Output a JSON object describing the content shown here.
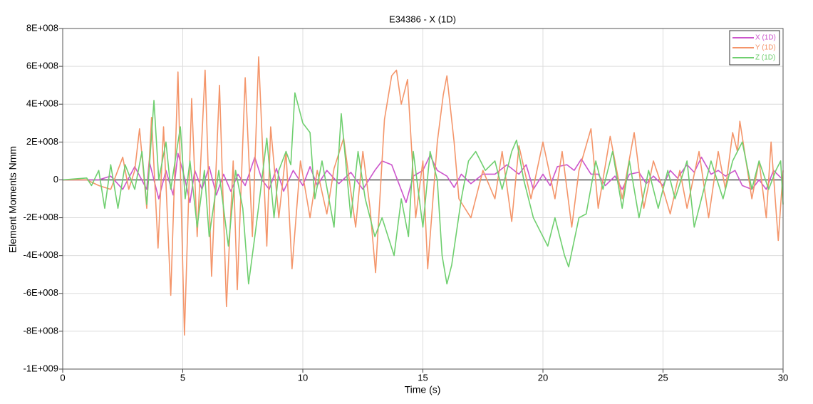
{
  "chart_data": {
    "type": "line",
    "title": "E34386 - X (1D)",
    "xlabel": "Time (s)",
    "ylabel": "Element Moments Nmm",
    "xlim": [
      0,
      30
    ],
    "xticks": [
      0,
      5,
      10,
      15,
      20,
      25,
      30
    ],
    "ylim": [
      -1000000000,
      800000000
    ],
    "yticks": [
      {
        "value": -1000000000,
        "label": "-1E+009"
      },
      {
        "value": -800000000,
        "label": "-8E+008"
      },
      {
        "value": -600000000,
        "label": "-6E+008"
      },
      {
        "value": -400000000,
        "label": "-4E+008"
      },
      {
        "value": -200000000,
        "label": "-2E+008"
      },
      0,
      {
        "value": 200000000,
        "label": "2E+008"
      },
      {
        "value": 400000000,
        "label": "4E+008"
      },
      {
        "value": 600000000,
        "label": "6E+008"
      },
      {
        "value": 800000000,
        "label": "8E+008"
      }
    ],
    "grid": true,
    "legend": "upper right",
    "series": [
      {
        "name": "X (1D)",
        "color": "#cc55cc",
        "x": [
          0,
          1.5,
          2,
          2.5,
          3,
          3.5,
          3.6,
          4,
          4.3,
          4.6,
          4.8,
          5.1,
          5.3,
          5.5,
          5.8,
          6.1,
          6.4,
          6.7,
          7,
          7.3,
          7.6,
          8,
          8.3,
          8.6,
          8.9,
          9.2,
          9.6,
          10,
          10.3,
          10.6,
          11,
          11.5,
          12,
          12.5,
          13,
          13.3,
          13.7,
          14,
          14.3,
          14.6,
          15,
          15.3,
          15.6,
          16,
          16.3,
          16.6,
          17,
          17.5,
          18,
          18.5,
          19,
          19.3,
          19.6,
          20,
          20.3,
          20.6,
          21,
          21.3,
          21.6,
          22,
          22.3,
          22.6,
          23,
          23.3,
          23.6,
          24,
          24.3,
          24.6,
          25,
          25.3,
          25.6,
          26,
          26.3,
          26.6,
          27,
          27.3,
          27.6,
          28,
          28.3,
          28.7,
          29,
          29.3,
          29.6,
          30
        ],
        "values": [
          0,
          0,
          20000000.0,
          -50000000.0,
          70000000.0,
          -50000000.0,
          100000000.0,
          -100000000.0,
          50000000.0,
          -80000000.0,
          140000000.0,
          0,
          -120000000.0,
          50000000.0,
          -50000000.0,
          70000000.0,
          -80000000.0,
          30000000.0,
          -60000000.0,
          30000000.0,
          -30000000.0,
          120000000.0,
          0,
          -50000000.0,
          60000000.0,
          -60000000.0,
          50000000.0,
          -30000000.0,
          70000000.0,
          -30000000.0,
          50000000.0,
          -20000000.0,
          40000000.0,
          -50000000.0,
          50000000.0,
          100000000.0,
          80000000.0,
          -20000000.0,
          -120000000.0,
          20000000.0,
          50000000.0,
          130000000.0,
          50000000.0,
          20000000.0,
          -40000000.0,
          30000000.0,
          -20000000.0,
          30000000.0,
          30000000.0,
          80000000.0,
          30000000.0,
          80000000.0,
          -50000000.0,
          30000000.0,
          -30000000.0,
          70000000.0,
          80000000.0,
          50000000.0,
          110000000.0,
          30000000.0,
          30000000.0,
          -30000000.0,
          20000000.0,
          -50000000.0,
          30000000.0,
          40000000.0,
          -20000000.0,
          20000000.0,
          -30000000.0,
          50000000.0,
          10000000.0,
          80000000.0,
          40000000.0,
          120000000.0,
          30000000.0,
          50000000.0,
          20000000.0,
          50000000.0,
          -30000000.0,
          -50000000.0,
          0,
          -50000000.0,
          50000000.0,
          0
        ]
      },
      {
        "name": "Y (1D)",
        "color": "#f4956a",
        "x": [
          0,
          1,
          1.5,
          2,
          2.5,
          2.75,
          3,
          3.2,
          3.5,
          3.7,
          3.97,
          4.2,
          4.5,
          4.8,
          5.07,
          5.37,
          5.6,
          5.93,
          6.2,
          6.53,
          6.82,
          7.1,
          7.27,
          7.6,
          7.9,
          8.16,
          8.5,
          8.66,
          9,
          9.3,
          9.55,
          9.9,
          10.3,
          10.6,
          11,
          11.3,
          11.7,
          12.2,
          12.5,
          12.8,
          13.03,
          13.4,
          13.7,
          13.9,
          14.1,
          14.36,
          14.7,
          15,
          15.2,
          15.6,
          15.85,
          16,
          16.3,
          16.5,
          17,
          17.5,
          18,
          18.3,
          18.7,
          19,
          19.5,
          20,
          20.5,
          20.8,
          21.2,
          21.5,
          22,
          22.3,
          22.8,
          23.3,
          23.8,
          24.2,
          24.6,
          25,
          25.3,
          25.7,
          26,
          26.5,
          26.9,
          27.3,
          27.6,
          27.9,
          28.1,
          28.2,
          28.7,
          29,
          29.3,
          29.5,
          29.8,
          30
        ],
        "values": [
          0,
          0,
          -30000000.0,
          -50000000.0,
          120000000.0,
          -50000000.0,
          50000000.0,
          270000000.0,
          -150000000.0,
          330000000.0,
          -360000000.0,
          280000000.0,
          -610000000.0,
          570000000.0,
          -820000000.0,
          430000000.0,
          -300000000.0,
          580000000.0,
          -510000000.0,
          500000000.0,
          -670000000.0,
          100000000.0,
          -580000000.0,
          540000000.0,
          -300000000.0,
          650000000.0,
          -350000000.0,
          280000000.0,
          -200000000.0,
          150000000.0,
          -470000000.0,
          100000000.0,
          -200000000.0,
          50000000.0,
          -180000000.0,
          60000000.0,
          220000000.0,
          -250000000.0,
          150000000.0,
          -150000000.0,
          -490000000.0,
          320000000.0,
          550000000.0,
          580000000.0,
          400000000.0,
          530000000.0,
          -200000000.0,
          100000000.0,
          -470000000.0,
          200000000.0,
          450000000.0,
          550000000.0,
          200000000.0,
          -100000000.0,
          -200000000.0,
          50000000.0,
          -100000000.0,
          150000000.0,
          -220000000.0,
          180000000.0,
          -100000000.0,
          200000000.0,
          -100000000.0,
          150000000.0,
          -250000000.0,
          50000000.0,
          270000000.0,
          -150000000.0,
          230000000.0,
          -100000000.0,
          250000000.0,
          -150000000.0,
          100000000.0,
          -50000000.0,
          -180000000.0,
          50000000.0,
          -150000000.0,
          150000000.0,
          -200000000.0,
          150000000.0,
          -50000000.0,
          250000000.0,
          150000000.0,
          310000000.0,
          -100000000.0,
          100000000.0,
          -200000000.0,
          200000000.0,
          -320000000.0,
          50000000.0
        ]
      },
      {
        "name": "Z (1D)",
        "color": "#6fcf6f",
        "x": [
          0,
          1,
          1.2,
          1.5,
          1.75,
          2,
          2.3,
          2.6,
          3,
          3.3,
          3.5,
          3.8,
          4,
          4.3,
          4.5,
          4.9,
          5.1,
          5.3,
          5.6,
          5.9,
          6.1,
          6.5,
          6.9,
          7.2,
          7.5,
          7.74,
          8,
          8.2,
          8.5,
          8.8,
          9,
          9.3,
          9.5,
          9.67,
          10,
          10.3,
          10.5,
          10.8,
          11.3,
          11.6,
          12,
          12.3,
          12.6,
          13,
          13.3,
          13.8,
          14.1,
          14.4,
          14.6,
          15,
          15.3,
          15.6,
          15.8,
          16,
          16.2,
          16.6,
          16.9,
          17.2,
          17.6,
          18,
          18.3,
          18.7,
          18.9,
          19.2,
          19.6,
          20.2,
          20.5,
          20.9,
          21.07,
          21.5,
          21.8,
          22.2,
          22.5,
          22.9,
          23.3,
          23.6,
          24,
          24.4,
          24.8,
          25.2,
          25.5,
          26,
          26.3,
          26.6,
          27,
          27.5,
          27.9,
          28.3,
          28.7,
          29,
          29.4,
          29.7,
          29.9,
          30
        ],
        "values": [
          0,
          10000000.0,
          -30000000.0,
          50000000.0,
          -150000000.0,
          80000000.0,
          -150000000.0,
          80000000.0,
          -50000000.0,
          150000000.0,
          -130000000.0,
          420000000.0,
          0,
          200000000.0,
          -50000000.0,
          280000000.0,
          -100000000.0,
          100000000.0,
          -250000000.0,
          50000000.0,
          -300000000.0,
          50000000.0,
          -350000000.0,
          50000000.0,
          -150000000.0,
          -550000000.0,
          -300000000.0,
          -100000000.0,
          220000000.0,
          -200000000.0,
          50000000.0,
          150000000.0,
          80000000.0,
          460000000.0,
          300000000.0,
          250000000.0,
          -100000000.0,
          100000000.0,
          -250000000.0,
          350000000.0,
          -200000000.0,
          150000000.0,
          -100000000.0,
          -300000000.0,
          -200000000.0,
          -400000000.0,
          -100000000.0,
          -300000000.0,
          150000000.0,
          -250000000.0,
          150000000.0,
          0,
          -400000000.0,
          -550000000.0,
          -450000000.0,
          -100000000.0,
          100000000.0,
          150000000.0,
          50000000.0,
          100000000.0,
          -50000000.0,
          150000000.0,
          210000000.0,
          0,
          -200000000.0,
          -350000000.0,
          -200000000.0,
          -400000000.0,
          -460000000.0,
          -200000000.0,
          -180000000.0,
          100000000.0,
          -50000000.0,
          150000000.0,
          -150000000.0,
          100000000.0,
          -200000000.0,
          50000000.0,
          -150000000.0,
          50000000.0,
          -100000000.0,
          100000000.0,
          -250000000.0,
          -100000000.0,
          100000000.0,
          -100000000.0,
          100000000.0,
          200000000.0,
          -50000000.0,
          100000000.0,
          -50000000.0,
          50000000.0,
          100000000.0,
          -130000000.0
        ]
      }
    ]
  }
}
